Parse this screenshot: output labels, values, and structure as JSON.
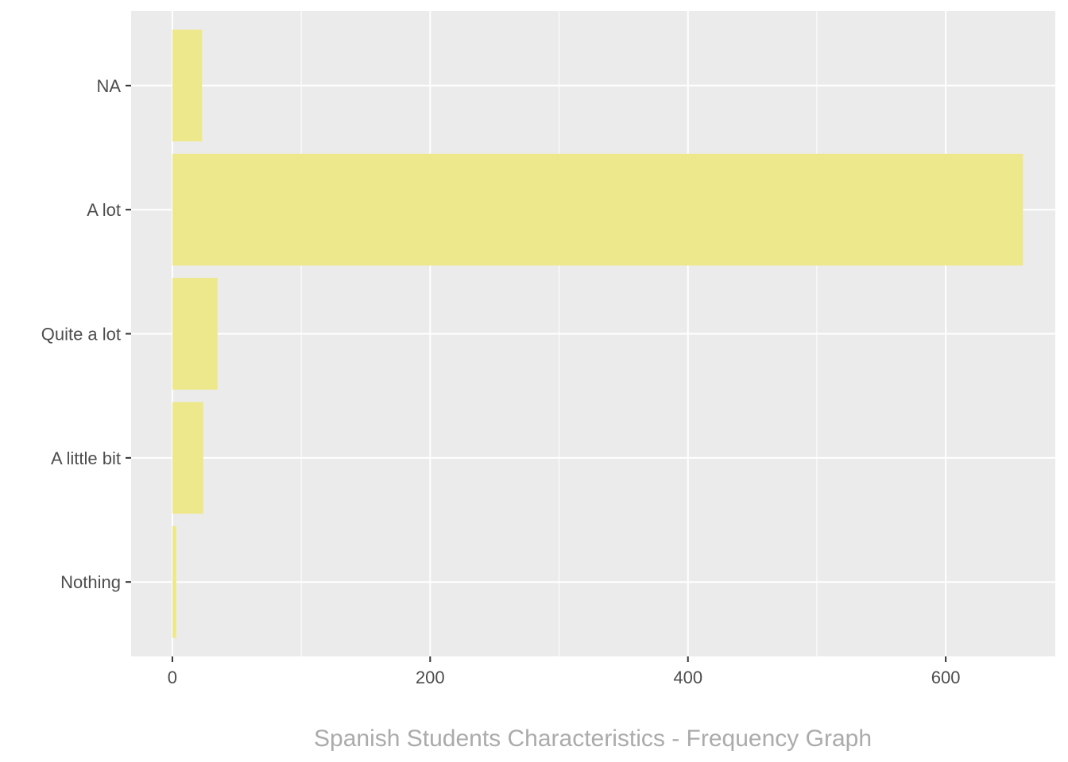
{
  "chart_data": {
    "type": "bar",
    "orientation": "horizontal",
    "categories": [
      "Nothing",
      "A little bit",
      "Quite a lot",
      "A lot",
      "NA"
    ],
    "values": [
      3,
      24,
      35,
      660,
      23
    ],
    "xlabel": "Spanish Students Characteristics - Frequency Graph",
    "ylabel": "",
    "xlim": [
      -32,
      685
    ],
    "x_ticks": [
      0,
      200,
      400,
      600
    ],
    "x_minor_ticks": [
      100,
      300,
      500
    ],
    "grid": true,
    "bar_color": "#eee88c",
    "panel_color": "#ebebeb",
    "grid_color": "#ffffff",
    "tick_label_color": "#4d4d4d",
    "axis_title_color": "#ababab"
  }
}
